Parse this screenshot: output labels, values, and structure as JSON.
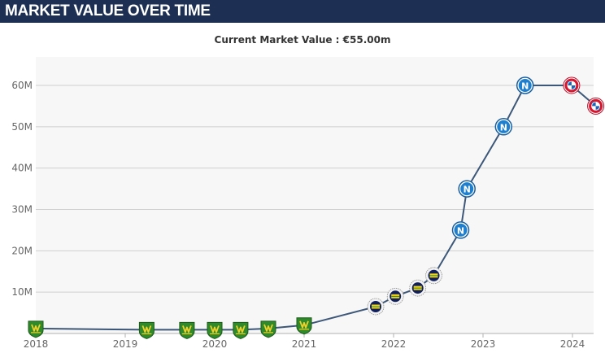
{
  "header": {
    "title": "MARKET VALUE OVER TIME"
  },
  "chart_data": {
    "type": "line",
    "title": "Current Market Value : €55.00m",
    "xlabel": "",
    "ylabel": "",
    "xlim": [
      2018.0,
      2024.24
    ],
    "ylim": [
      0,
      64
    ],
    "x_ticks": [
      {
        "value": 2018,
        "label": "2018"
      },
      {
        "value": 2019,
        "label": "2019"
      },
      {
        "value": 2020,
        "label": "2020"
      },
      {
        "value": 2021,
        "label": "2021"
      },
      {
        "value": 2022,
        "label": "2022"
      },
      {
        "value": 2023,
        "label": "2023"
      },
      {
        "value": 2024,
        "label": "2024"
      }
    ],
    "y_ticks": [
      {
        "value": 10,
        "label": "10M"
      },
      {
        "value": 20,
        "label": "20M"
      },
      {
        "value": 30,
        "label": "30M"
      },
      {
        "value": 40,
        "label": "40M"
      },
      {
        "value": 50,
        "label": "50M"
      },
      {
        "value": 60,
        "label": "60M"
      }
    ],
    "grid": true,
    "line_color": "#3c5778",
    "series": [
      {
        "points": [
          {
            "x": 2018.0,
            "y": 1.2,
            "club": "jeonbuk"
          },
          {
            "x": 2019.24,
            "y": 0.9,
            "club": "jeonbuk"
          },
          {
            "x": 2019.69,
            "y": 0.9,
            "club": "jeonbuk"
          },
          {
            "x": 2020.0,
            "y": 0.9,
            "club": "jeonbuk"
          },
          {
            "x": 2020.29,
            "y": 0.9,
            "club": "jeonbuk"
          },
          {
            "x": 2020.6,
            "y": 1.2,
            "club": "jeonbuk"
          },
          {
            "x": 2021.0,
            "y": 2.0,
            "club": "jeonbuk"
          },
          {
            "x": 2021.8,
            "y": 6.5,
            "club": "fenerbahce"
          },
          {
            "x": 2022.02,
            "y": 9.0,
            "club": "fenerbahce"
          },
          {
            "x": 2022.27,
            "y": 11.0,
            "club": "fenerbahce"
          },
          {
            "x": 2022.45,
            "y": 14.0,
            "club": "fenerbahce"
          },
          {
            "x": 2022.75,
            "y": 25.0,
            "club": "napoli"
          },
          {
            "x": 2022.82,
            "y": 35.0,
            "club": "napoli"
          },
          {
            "x": 2023.23,
            "y": 50.0,
            "club": "napoli"
          },
          {
            "x": 2023.47,
            "y": 60.0,
            "club": "napoli"
          },
          {
            "x": 2023.99,
            "y": 60.0,
            "club": "bayern"
          },
          {
            "x": 2024.26,
            "y": 55.0,
            "club": "bayern"
          }
        ]
      }
    ]
  },
  "colors": {
    "header_bg": "#1d2f52",
    "plot_bg": "#f7f7f7",
    "grid": "#cfcfcf",
    "napoli": "#1e7fcf",
    "jeonbuk": "#2f8a2a",
    "fenerbahce": "#12205a",
    "bayern": "#d7162e"
  },
  "icons": {
    "jeonbuk": "jeonbuk-crest-icon",
    "fenerbahce": "fenerbahce-crest-icon",
    "napoli": "napoli-crest-icon",
    "bayern": "bayern-crest-icon"
  }
}
